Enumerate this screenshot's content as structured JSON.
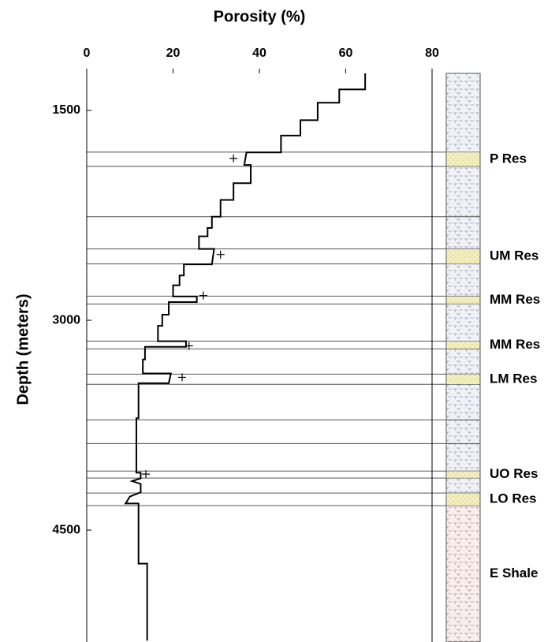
{
  "chart_data": {
    "type": "depth-log",
    "title": "Porosity (%)",
    "y_label": "Depth (meters)",
    "xlim": [
      0,
      80
    ],
    "xticks": [
      0,
      20,
      40,
      60,
      80
    ],
    "ylim": [
      1235,
      5300
    ],
    "yticks": [
      1500,
      3000,
      4500
    ],
    "y_inverted": true,
    "series": [
      {
        "color": "#000000",
        "x": [
          64.5,
          64.5,
          58.5,
          58.5,
          53.5,
          53.5,
          49.5,
          49.5,
          45,
          45,
          37,
          36.5,
          38,
          38,
          34,
          34,
          31,
          31,
          29,
          29,
          28,
          28,
          26,
          26,
          29.5,
          29,
          22.5,
          22.5,
          21.5,
          21.5,
          20,
          20,
          25.5,
          25.5,
          19,
          19,
          17.5,
          17.5,
          16.5,
          16.5,
          23,
          23,
          13.5,
          13.5,
          13,
          13,
          19.5,
          19,
          12,
          12,
          11.5,
          11.5,
          12.5,
          12.5,
          10.5,
          12.5,
          12.5,
          10,
          9,
          12,
          12,
          14,
          14
        ],
        "y": [
          1235,
          1350,
          1350,
          1445,
          1445,
          1570,
          1570,
          1680,
          1680,
          1800,
          1800,
          1890,
          1890,
          2020,
          2020,
          2140,
          2140,
          2260,
          2260,
          2340,
          2340,
          2400,
          2400,
          2490,
          2490,
          2600,
          2600,
          2680,
          2680,
          2750,
          2750,
          2830,
          2830,
          2870,
          2870,
          2960,
          2960,
          3040,
          3040,
          3150,
          3150,
          3190,
          3190,
          3280,
          3280,
          3380,
          3380,
          3450,
          3450,
          3700,
          3700,
          4090,
          4090,
          4130,
          4150,
          4170,
          4230,
          4260,
          4310,
          4310,
          4740,
          4740,
          5290
        ]
      }
    ],
    "markers": {
      "color": "#000000",
      "x": [
        34,
        31,
        27,
        23.7,
        22.1,
        13.7
      ],
      "y": [
        1843,
        2530,
        2823,
        3183,
        3408,
        4100
      ]
    },
    "horizons": [
      1798,
      1900,
      2260,
      2490,
      2597,
      2828,
      2884,
      3149,
      3205,
      3385,
      3458,
      3712,
      3881,
      4078,
      4128,
      4235,
      4325
    ],
    "horizon_color": "#555555",
    "zones": [
      {
        "name": "P Res",
        "top": 1798,
        "base": 1900,
        "kind": "sand"
      },
      {
        "name": "UM Res",
        "top": 2490,
        "base": 2597,
        "kind": "sand"
      },
      {
        "name": "MM Res",
        "top": 2828,
        "base": 2884,
        "kind": "sand"
      },
      {
        "name": "MM Res",
        "top": 3149,
        "base": 3205,
        "kind": "sand"
      },
      {
        "name": "LM Res",
        "top": 3385,
        "base": 3458,
        "kind": "sand"
      },
      {
        "name": "UO Res",
        "top": 4078,
        "base": 4128,
        "kind": "sand"
      },
      {
        "name": "LO Res",
        "top": 4235,
        "base": 4325,
        "kind": "sand"
      },
      {
        "name": "E Shale",
        "top": 4325,
        "base": 5300,
        "kind": "shale"
      }
    ]
  }
}
